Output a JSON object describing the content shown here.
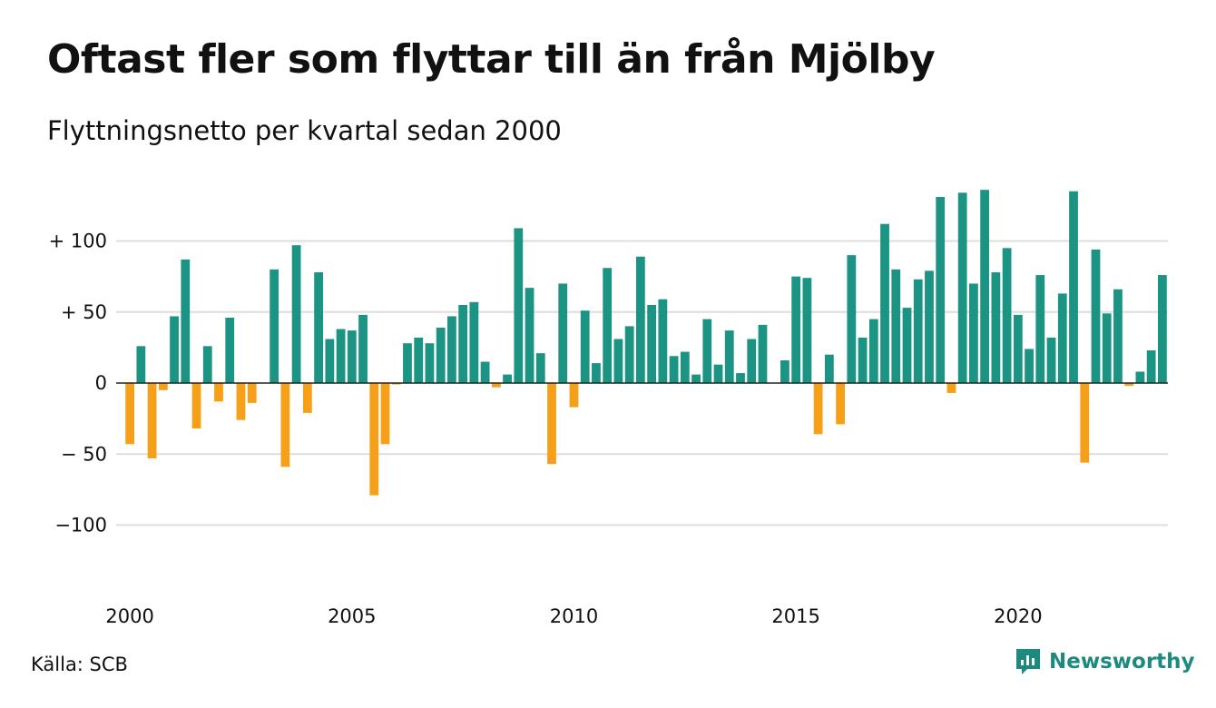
{
  "title": "Oftast fler som flyttar till än från Mjölby",
  "subtitle": "Flyttningsnetto per kvartal sedan 2000",
  "source": "Källa: SCB",
  "brand": {
    "name": "Newsworthy",
    "icon": "newsworthy-logo-icon"
  },
  "colors": {
    "positive": "#1b9483",
    "negative": "#f6a01a",
    "grid": "#dddddd",
    "zero": "#222222"
  },
  "chart_data": {
    "type": "bar",
    "ylim": [
      -140,
      140
    ],
    "yticks": [
      {
        "value": 100,
        "label": "+ 100"
      },
      {
        "value": 50,
        "label": "+  50"
      },
      {
        "value": 0,
        "label": "0"
      },
      {
        "value": -50,
        "label": "− 50"
      },
      {
        "value": -100,
        "label": "−100"
      }
    ],
    "xticks": [
      {
        "index": 0,
        "label": "2000"
      },
      {
        "index": 20,
        "label": "2005"
      },
      {
        "index": 40,
        "label": "2010"
      },
      {
        "index": 60,
        "label": "2015"
      },
      {
        "index": 80,
        "label": "2020"
      }
    ],
    "grid": true,
    "values": [
      -43,
      26,
      -53,
      -5,
      47,
      87,
      -32,
      26,
      -13,
      46,
      -26,
      -14,
      0,
      80,
      -59,
      97,
      -21,
      78,
      31,
      38,
      37,
      48,
      -79,
      -43,
      -1,
      28,
      32,
      28,
      39,
      47,
      55,
      57,
      15,
      -3,
      6,
      109,
      67,
      21,
      -57,
      70,
      -17,
      51,
      14,
      81,
      31,
      40,
      89,
      55,
      59,
      19,
      22,
      6,
      45,
      13,
      37,
      7,
      31,
      41,
      0,
      16,
      75,
      74,
      -36,
      20,
      -29,
      90,
      32,
      45,
      112,
      80,
      53,
      73,
      79,
      131,
      -7,
      134,
      70,
      136,
      78,
      95,
      48,
      24,
      76,
      32,
      63,
      135,
      -56,
      94,
      49,
      66,
      -2,
      8,
      23,
      76
    ]
  }
}
